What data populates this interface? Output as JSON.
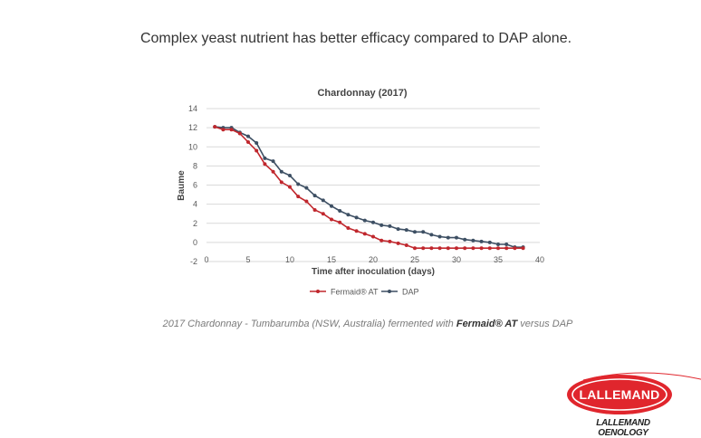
{
  "headline": "Complex yeast nutrient has better efficacy compared to DAP alone.",
  "chart_data": {
    "type": "line",
    "title": "Chardonnay (2017)",
    "xlabel": "Time after inoculation (days)",
    "ylabel": "Baume",
    "xlim": [
      0,
      40
    ],
    "ylim": [
      -2,
      14
    ],
    "xticks": [
      0,
      5,
      10,
      15,
      20,
      25,
      30,
      35,
      40
    ],
    "xtick_labels": [
      "0",
      "5",
      "10",
      "15",
      "20",
      "25",
      "30",
      "35",
      "40"
    ],
    "yticks": [
      -2,
      0,
      2,
      4,
      6,
      8,
      10,
      12,
      14
    ],
    "ytick_labels": [
      "-2",
      "0",
      "2",
      "4",
      "6",
      "8",
      "10",
      "12",
      "14"
    ],
    "grid": true,
    "legend_position": "bottom",
    "series": [
      {
        "name": "Fermaid® AT",
        "color": "#c0272d",
        "x": [
          1,
          2,
          3,
          4,
          5,
          6,
          7,
          8,
          9,
          10,
          11,
          12,
          13,
          14,
          15,
          16,
          17,
          18,
          19,
          20,
          21,
          22,
          23,
          24,
          25,
          26,
          27,
          28,
          29,
          30,
          31,
          32,
          33,
          34,
          35,
          36,
          37,
          38
        ],
        "y": [
          12.1,
          11.8,
          11.8,
          11.4,
          10.5,
          9.6,
          8.2,
          7.4,
          6.3,
          5.8,
          4.8,
          4.3,
          3.4,
          3.0,
          2.4,
          2.1,
          1.5,
          1.2,
          0.9,
          0.6,
          0.2,
          0.1,
          -0.1,
          -0.3,
          -0.6,
          -0.6,
          -0.6,
          -0.6,
          -0.6,
          -0.6,
          -0.6,
          -0.6,
          -0.6,
          -0.6,
          -0.6,
          -0.6,
          -0.6,
          -0.6
        ]
      },
      {
        "name": "DAP",
        "color": "#3d4f63",
        "x": [
          1,
          2,
          3,
          4,
          5,
          6,
          7,
          8,
          9,
          10,
          11,
          12,
          13,
          14,
          15,
          16,
          17,
          18,
          19,
          20,
          21,
          22,
          23,
          24,
          25,
          26,
          27,
          28,
          29,
          30,
          31,
          32,
          33,
          34,
          35,
          36,
          37,
          38
        ],
        "y": [
          12.1,
          12.0,
          12.0,
          11.5,
          11.1,
          10.4,
          8.8,
          8.5,
          7.4,
          7.0,
          6.1,
          5.7,
          4.9,
          4.4,
          3.8,
          3.3,
          2.9,
          2.6,
          2.3,
          2.1,
          1.8,
          1.7,
          1.4,
          1.3,
          1.1,
          1.1,
          0.8,
          0.6,
          0.5,
          0.5,
          0.3,
          0.2,
          0.1,
          0.0,
          -0.2,
          -0.2,
          -0.5,
          -0.5
        ]
      }
    ]
  },
  "caption": {
    "prefix": "2017 Chardonnay - Tumbarumba (NSW, Australia) fermented  with ",
    "product": "Fermaid® AT",
    "suffix": " versus DAP"
  },
  "logo": {
    "name": "LALLEMAND",
    "subtitle": "LALLEMAND OENOLOGY",
    "color": "#e0262d"
  }
}
